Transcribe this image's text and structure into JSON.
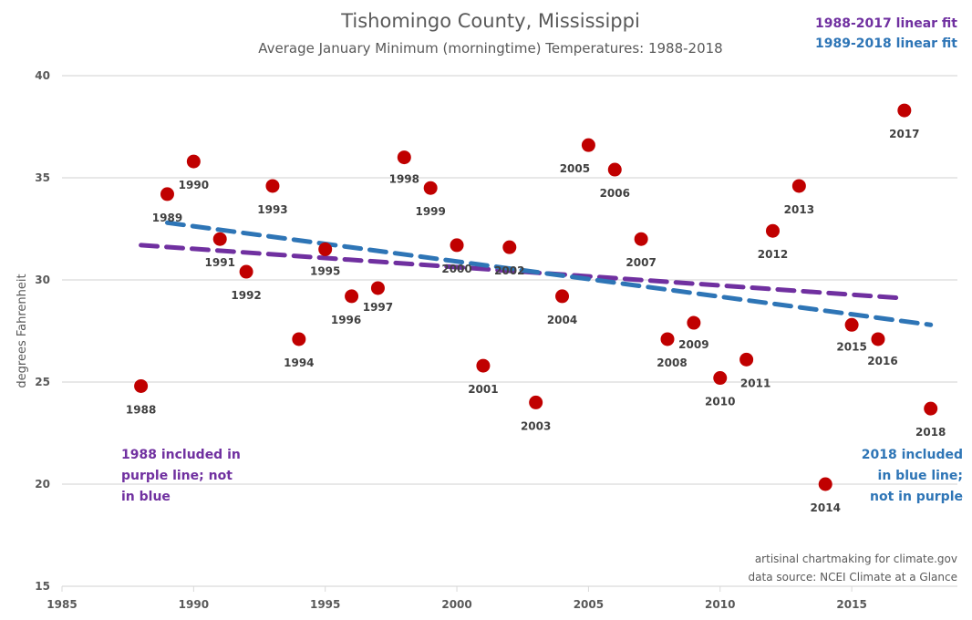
{
  "chart_data": {
    "type": "scatter",
    "title": "Tishomingo County, Mississippi",
    "subtitle": "Average January Minimum (morningtime) Temperatures: 1988-2018",
    "xlabel": "",
    "ylabel": "degrees Fahrenheit",
    "xlim": [
      1985,
      2019
    ],
    "ylim": [
      15,
      40
    ],
    "xticks": [
      1985,
      1990,
      1995,
      2000,
      2005,
      2010,
      2015
    ],
    "yticks": [
      15,
      20,
      25,
      30,
      35,
      40
    ],
    "grid": "horizontal",
    "point_color": "#C00000",
    "points": [
      {
        "year": 1988,
        "value": 24.8
      },
      {
        "year": 1989,
        "value": 34.2
      },
      {
        "year": 1990,
        "value": 35.8
      },
      {
        "year": 1991,
        "value": 32.0
      },
      {
        "year": 1992,
        "value": 30.4
      },
      {
        "year": 1993,
        "value": 34.6
      },
      {
        "year": 1994,
        "value": 27.1
      },
      {
        "year": 1995,
        "value": 31.5
      },
      {
        "year": 1996,
        "value": 29.2
      },
      {
        "year": 1997,
        "value": 29.6
      },
      {
        "year": 1998,
        "value": 36.0
      },
      {
        "year": 1999,
        "value": 34.5
      },
      {
        "year": 2000,
        "value": 31.7
      },
      {
        "year": 2001,
        "value": 25.8
      },
      {
        "year": 2002,
        "value": 31.6
      },
      {
        "year": 2003,
        "value": 24.0
      },
      {
        "year": 2004,
        "value": 29.2
      },
      {
        "year": 2005,
        "value": 36.6
      },
      {
        "year": 2006,
        "value": 35.4
      },
      {
        "year": 2007,
        "value": 32.0
      },
      {
        "year": 2008,
        "value": 27.1
      },
      {
        "year": 2009,
        "value": 27.9
      },
      {
        "year": 2010,
        "value": 25.2
      },
      {
        "year": 2011,
        "value": 26.1
      },
      {
        "year": 2012,
        "value": 32.4
      },
      {
        "year": 2013,
        "value": 34.6
      },
      {
        "year": 2014,
        "value": 20.0
      },
      {
        "year": 2015,
        "value": 27.8
      },
      {
        "year": 2016,
        "value": 27.1
      },
      {
        "year": 2017,
        "value": 38.3
      },
      {
        "year": 2018,
        "value": 23.7
      }
    ],
    "trendlines": [
      {
        "name": "1988-2017 linear fit",
        "color": "#7030A0",
        "start": [
          1988,
          31.7
        ],
        "end": [
          2017,
          29.1
        ]
      },
      {
        "name": "1989-2018 linear fit",
        "color": "#2E75B6",
        "start": [
          1989,
          32.8
        ],
        "end": [
          2018,
          27.8
        ]
      }
    ],
    "legend_position": "top-right",
    "annotations": [
      {
        "lines": [
          "1988 included in",
          "purple line; not",
          "in blue"
        ],
        "color": "#7030A0",
        "position": "bottom-left"
      },
      {
        "lines": [
          "2018 included",
          "in blue line;",
          "not in purple"
        ],
        "color": "#2E75B6",
        "position": "bottom-right"
      }
    ],
    "credits": [
      "artisinal chartmaking for climate.gov",
      "data source: NCEI Climate at a Glance"
    ]
  }
}
